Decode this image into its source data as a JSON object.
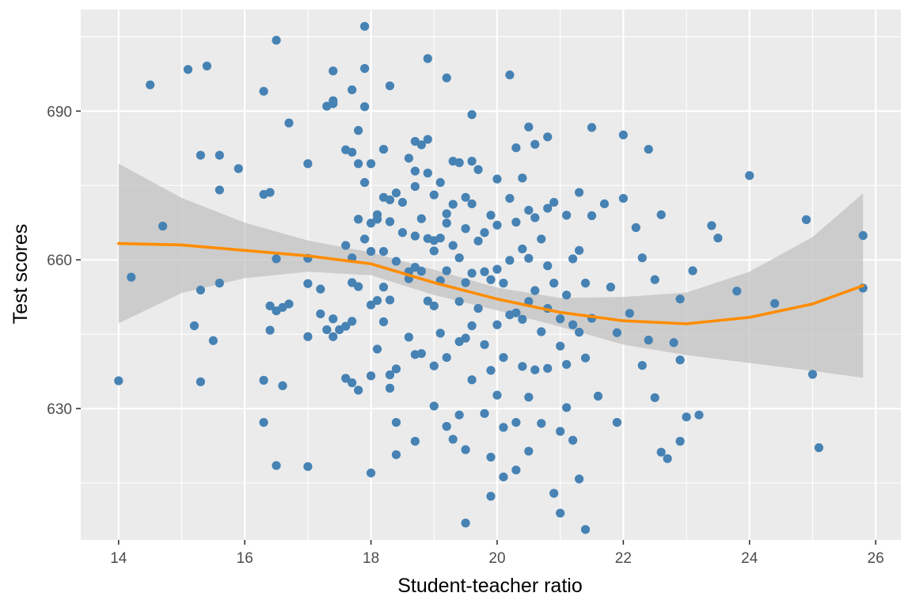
{
  "chart_data": {
    "type": "scatter",
    "title": "",
    "xlabel": "Student-teacher ratio",
    "ylabel": "Test scores",
    "xlim": [
      13.4,
      26.4
    ],
    "ylim": [
      603.5,
      710.5
    ],
    "x_ticks": [
      14,
      16,
      18,
      20,
      22,
      24,
      26
    ],
    "x_tick_labels": [
      "14",
      "16",
      "18",
      "20",
      "22",
      "24",
      "26"
    ],
    "y_ticks": [
      630,
      660,
      690
    ],
    "y_tick_labels": [
      "630",
      "660",
      "690"
    ],
    "grid": true,
    "legend": "none",
    "colors": {
      "panel": "#ebebeb",
      "points": "#4682b4",
      "smooth_line": "#ff8c00",
      "ribbon": "#bfbfbf"
    },
    "series": [
      {
        "type": "scatter",
        "points": [
          [
            14.0,
            635.6
          ],
          [
            14.2,
            656.5
          ],
          [
            14.5,
            695.3
          ],
          [
            14.7,
            666.8
          ],
          [
            15.1,
            698.4
          ],
          [
            15.2,
            646.7
          ],
          [
            15.3,
            653.9
          ],
          [
            15.3,
            635.4
          ],
          [
            15.3,
            681.1
          ],
          [
            15.4,
            699.1
          ],
          [
            15.5,
            643.7
          ],
          [
            15.6,
            655.3
          ],
          [
            15.6,
            674.1
          ],
          [
            15.6,
            681.1
          ],
          [
            15.9,
            678.4
          ],
          [
            16.3,
            694.0
          ],
          [
            16.3,
            627.2
          ],
          [
            16.3,
            673.2
          ],
          [
            16.3,
            635.7
          ],
          [
            16.4,
            650.7
          ],
          [
            16.4,
            673.6
          ],
          [
            16.4,
            645.8
          ],
          [
            16.5,
            649.7
          ],
          [
            16.5,
            704.3
          ],
          [
            16.5,
            660.2
          ],
          [
            16.5,
            618.5
          ],
          [
            16.6,
            650.4
          ],
          [
            16.6,
            634.6
          ],
          [
            16.7,
            687.6
          ],
          [
            16.7,
            651.1
          ],
          [
            17.0,
            679.4
          ],
          [
            17.0,
            655.2
          ],
          [
            17.0,
            618.3
          ],
          [
            17.0,
            644.5
          ],
          [
            17.0,
            660.3
          ],
          [
            17.2,
            654.1
          ],
          [
            17.2,
            649.1
          ],
          [
            17.3,
            691.0
          ],
          [
            17.3,
            645.9
          ],
          [
            17.4,
            692.1
          ],
          [
            17.4,
            698.1
          ],
          [
            17.4,
            691.5
          ],
          [
            17.4,
            648.1
          ],
          [
            17.4,
            644.5
          ],
          [
            17.5,
            645.9
          ],
          [
            17.6,
            682.2
          ],
          [
            17.6,
            636.1
          ],
          [
            17.6,
            646.6
          ],
          [
            17.6,
            662.9
          ],
          [
            17.7,
            681.7
          ],
          [
            17.7,
            655.4
          ],
          [
            17.7,
            635.2
          ],
          [
            17.7,
            647.6
          ],
          [
            17.7,
            660.4
          ],
          [
            17.7,
            694.3
          ],
          [
            17.8,
            686.1
          ],
          [
            17.8,
            668.2
          ],
          [
            17.8,
            679.4
          ],
          [
            17.8,
            654.6
          ],
          [
            17.8,
            633.7
          ],
          [
            17.9,
            698.6
          ],
          [
            17.9,
            707.1
          ],
          [
            17.9,
            690.9
          ],
          [
            17.9,
            675.6
          ],
          [
            17.9,
            664.2
          ],
          [
            18.0,
            667.4
          ],
          [
            18.0,
            636.6
          ],
          [
            18.0,
            661.7
          ],
          [
            18.0,
            650.9
          ],
          [
            18.0,
            617.0
          ],
          [
            18.0,
            679.4
          ],
          [
            18.1,
            669.1
          ],
          [
            18.1,
            651.8
          ],
          [
            18.1,
            668.2
          ],
          [
            18.1,
            642.0
          ],
          [
            18.2,
            682.3
          ],
          [
            18.2,
            672.6
          ],
          [
            18.2,
            661.7
          ],
          [
            18.2,
            654.5
          ],
          [
            18.2,
            647.5
          ],
          [
            18.3,
            634.1
          ],
          [
            18.3,
            667.7
          ],
          [
            18.3,
            636.8
          ],
          [
            18.3,
            651.9
          ],
          [
            18.3,
            695.1
          ],
          [
            18.3,
            672.1
          ],
          [
            18.4,
            659.7
          ],
          [
            18.4,
            673.5
          ],
          [
            18.4,
            627.2
          ],
          [
            18.4,
            620.7
          ],
          [
            18.4,
            638.0
          ],
          [
            18.5,
            665.5
          ],
          [
            18.5,
            671.6
          ],
          [
            18.6,
            656.2
          ],
          [
            18.6,
            657.6
          ],
          [
            18.6,
            644.4
          ],
          [
            18.6,
            680.5
          ],
          [
            18.7,
            683.9
          ],
          [
            18.7,
            674.8
          ],
          [
            18.7,
            640.9
          ],
          [
            18.7,
            623.4
          ],
          [
            18.7,
            664.8
          ],
          [
            18.7,
            677.9
          ],
          [
            18.7,
            658.5
          ],
          [
            18.8,
            657.7
          ],
          [
            18.8,
            641.1
          ],
          [
            18.8,
            668.3
          ],
          [
            18.8,
            683.2
          ],
          [
            18.9,
            700.6
          ],
          [
            18.9,
            684.3
          ],
          [
            18.9,
            664.3
          ],
          [
            18.9,
            651.7
          ],
          [
            18.9,
            677.5
          ],
          [
            19.0,
            650.7
          ],
          [
            19.0,
            638.6
          ],
          [
            19.0,
            673.1
          ],
          [
            19.0,
            663.9
          ],
          [
            19.0,
            630.5
          ],
          [
            19.0,
            661.8
          ],
          [
            19.1,
            655.8
          ],
          [
            19.1,
            664.4
          ],
          [
            19.1,
            675.6
          ],
          [
            19.1,
            645.2
          ],
          [
            19.2,
            696.7
          ],
          [
            19.2,
            669.3
          ],
          [
            19.2,
            667.4
          ],
          [
            19.2,
            657.8
          ],
          [
            19.2,
            640.3
          ],
          [
            19.2,
            626.4
          ],
          [
            19.3,
            679.9
          ],
          [
            19.3,
            671.2
          ],
          [
            19.3,
            623.8
          ],
          [
            19.3,
            662.9
          ],
          [
            19.4,
            660.4
          ],
          [
            19.4,
            651.6
          ],
          [
            19.4,
            643.5
          ],
          [
            19.4,
            628.7
          ],
          [
            19.4,
            679.6
          ],
          [
            19.5,
            672.6
          ],
          [
            19.5,
            666.3
          ],
          [
            19.5,
            655.4
          ],
          [
            19.5,
            644.2
          ],
          [
            19.5,
            621.7
          ],
          [
            19.5,
            606.9
          ],
          [
            19.6,
            689.3
          ],
          [
            19.6,
            679.9
          ],
          [
            19.6,
            671.3
          ],
          [
            19.6,
            657.3
          ],
          [
            19.6,
            646.7
          ],
          [
            19.6,
            635.8
          ],
          [
            19.7,
            663.8
          ],
          [
            19.7,
            678.2
          ],
          [
            19.7,
            650.2
          ],
          [
            19.8,
            657.6
          ],
          [
            19.8,
            642.9
          ],
          [
            19.8,
            665.5
          ],
          [
            19.8,
            629.0
          ],
          [
            19.9,
            612.3
          ],
          [
            19.9,
            620.2
          ],
          [
            19.9,
            637.7
          ],
          [
            19.9,
            656.0
          ],
          [
            19.9,
            669.0
          ],
          [
            20.0,
            632.7
          ],
          [
            20.0,
            646.9
          ],
          [
            20.0,
            658.1
          ],
          [
            20.0,
            667.0
          ],
          [
            20.0,
            676.3
          ],
          [
            20.1,
            655.3
          ],
          [
            20.1,
            616.2
          ],
          [
            20.1,
            626.2
          ],
          [
            20.1,
            640.3
          ],
          [
            20.2,
            697.3
          ],
          [
            20.2,
            672.4
          ],
          [
            20.2,
            659.9
          ],
          [
            20.2,
            648.9
          ],
          [
            20.3,
            667.6
          ],
          [
            20.3,
            649.3
          ],
          [
            20.3,
            617.6
          ],
          [
            20.3,
            682.6
          ],
          [
            20.3,
            627.2
          ],
          [
            20.4,
            676.5
          ],
          [
            20.4,
            662.2
          ],
          [
            20.4,
            648.0
          ],
          [
            20.4,
            638.5
          ],
          [
            20.5,
            686.8
          ],
          [
            20.5,
            670.0
          ],
          [
            20.5,
            660.3
          ],
          [
            20.5,
            651.6
          ],
          [
            20.5,
            632.3
          ],
          [
            20.5,
            621.4
          ],
          [
            20.6,
            683.3
          ],
          [
            20.6,
            668.5
          ],
          [
            20.6,
            637.8
          ],
          [
            20.6,
            653.8
          ],
          [
            20.7,
            664.2
          ],
          [
            20.7,
            645.5
          ],
          [
            20.7,
            627.0
          ],
          [
            20.8,
            684.8
          ],
          [
            20.8,
            670.4
          ],
          [
            20.8,
            658.8
          ],
          [
            20.8,
            650.2
          ],
          [
            20.8,
            638.1
          ],
          [
            20.9,
            612.9
          ],
          [
            20.9,
            655.3
          ],
          [
            20.9,
            671.6
          ],
          [
            21.0,
            608.9
          ],
          [
            21.0,
            625.4
          ],
          [
            21.0,
            642.6
          ],
          [
            21.0,
            648.1
          ],
          [
            21.1,
            669.0
          ],
          [
            21.1,
            652.9
          ],
          [
            21.1,
            638.9
          ],
          [
            21.1,
            630.2
          ],
          [
            21.2,
            660.2
          ],
          [
            21.2,
            646.9
          ],
          [
            21.2,
            623.6
          ],
          [
            21.3,
            615.8
          ],
          [
            21.3,
            645.4
          ],
          [
            21.3,
            661.9
          ],
          [
            21.3,
            673.6
          ],
          [
            21.4,
            605.6
          ],
          [
            21.4,
            655.3
          ],
          [
            21.4,
            640.2
          ],
          [
            21.5,
            686.7
          ],
          [
            21.5,
            668.9
          ],
          [
            21.5,
            648.2
          ],
          [
            21.6,
            632.5
          ],
          [
            21.7,
            671.3
          ],
          [
            21.8,
            654.5
          ],
          [
            21.9,
            627.2
          ],
          [
            21.9,
            645.3
          ],
          [
            22.0,
            685.2
          ],
          [
            22.0,
            672.4
          ],
          [
            22.1,
            649.2
          ],
          [
            22.2,
            666.5
          ],
          [
            22.3,
            638.7
          ],
          [
            22.3,
            660.4
          ],
          [
            22.4,
            682.3
          ],
          [
            22.4,
            643.8
          ],
          [
            22.5,
            632.2
          ],
          [
            22.5,
            656.0
          ],
          [
            22.6,
            669.1
          ],
          [
            22.6,
            621.2
          ],
          [
            22.7,
            619.9
          ],
          [
            22.8,
            643.3
          ],
          [
            22.9,
            623.4
          ],
          [
            22.9,
            652.1
          ],
          [
            22.9,
            639.8
          ],
          [
            23.0,
            628.3
          ],
          [
            23.1,
            657.8
          ],
          [
            23.2,
            628.7
          ],
          [
            23.4,
            666.9
          ],
          [
            23.5,
            664.4
          ],
          [
            23.8,
            653.7
          ],
          [
            24.0,
            677.0
          ],
          [
            24.4,
            651.2
          ],
          [
            24.9,
            668.1
          ],
          [
            25.0,
            636.9
          ],
          [
            25.1,
            622.1
          ],
          [
            25.8,
            664.9
          ],
          [
            25.8,
            654.3
          ]
        ]
      },
      {
        "type": "smooth",
        "method": "loess",
        "x": [
          14.0,
          15.0,
          16.0,
          17.0,
          18.0,
          19.0,
          20.0,
          21.0,
          22.0,
          23.0,
          24.0,
          25.0,
          25.8
        ],
        "y": [
          663.3,
          663.0,
          661.9,
          660.8,
          659.2,
          655.4,
          652.1,
          649.4,
          647.7,
          647.1,
          648.4,
          651.1,
          654.8
        ],
        "lower": [
          647.2,
          653.3,
          656.3,
          657.6,
          656.9,
          652.9,
          649.8,
          646.5,
          642.9,
          640.8,
          639.2,
          637.6,
          636.2
        ],
        "upper": [
          679.4,
          672.5,
          667.5,
          663.9,
          661.5,
          658.0,
          654.4,
          652.3,
          652.5,
          653.4,
          657.6,
          664.6,
          673.4
        ]
      }
    ]
  }
}
